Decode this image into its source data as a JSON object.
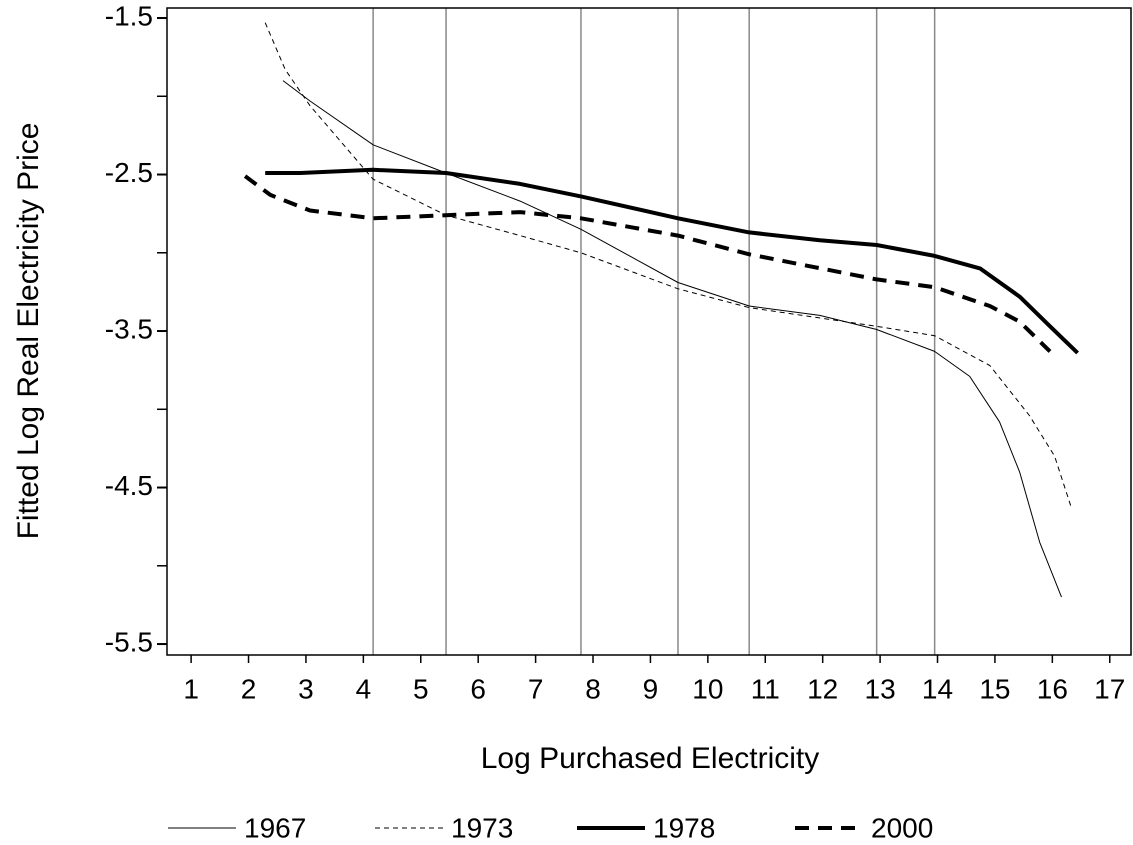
{
  "chart_data": {
    "type": "line",
    "xlabel": "Log Purchased Electricity",
    "ylabel": "Fitted Log Real Electricity Price",
    "xlim": [
      0.58,
      17.37
    ],
    "ylim": [
      -5.57,
      -1.436
    ],
    "xticks": [
      1,
      2,
      3,
      4,
      5,
      6,
      7,
      8,
      9,
      10,
      11,
      12,
      13,
      14,
      15,
      16,
      17
    ],
    "yticks": [
      -1.5,
      -2.5,
      -3.5,
      -4.5,
      -5.5
    ],
    "yminor_ticks": [
      -2,
      -3,
      -4,
      -5
    ],
    "vlines": [
      4.17,
      5.44,
      7.79,
      9.48,
      10.72,
      12.94,
      13.95
    ],
    "series": [
      {
        "name": "1967",
        "color": "#000000",
        "width": 1,
        "dash": "none",
        "x": [
          2.6,
          3.07,
          4.17,
          5.44,
          6.73,
          7.79,
          9.48,
          10.72,
          11.95,
          12.94,
          13.95,
          14.56,
          15.08,
          15.43,
          15.78,
          16.16
        ],
        "values": [
          -1.9,
          -2.03,
          -2.31,
          -2.49,
          -2.67,
          -2.85,
          -3.19,
          -3.34,
          -3.4,
          -3.49,
          -3.63,
          -3.79,
          -4.08,
          -4.4,
          -4.85,
          -5.2
        ]
      },
      {
        "name": "1973",
        "color": "#000000",
        "width": 1,
        "dash": "5,4",
        "x": [
          2.29,
          2.64,
          3.07,
          4.17,
          5.44,
          6.73,
          7.79,
          9.48,
          10.72,
          12.94,
          13.95,
          14.91,
          15.6,
          16.04,
          16.34
        ],
        "values": [
          -1.53,
          -1.83,
          -2.06,
          -2.53,
          -2.76,
          -2.89,
          -3.0,
          -3.23,
          -3.35,
          -3.47,
          -3.53,
          -3.72,
          -4.04,
          -4.3,
          -4.64
        ]
      },
      {
        "name": "1978",
        "color": "#000000",
        "width": 4,
        "dash": "none",
        "x": [
          2.29,
          2.9,
          4.17,
          5.44,
          6.73,
          7.79,
          9.48,
          10.72,
          11.95,
          12.94,
          13.95,
          14.74,
          15.43,
          15.96,
          16.44
        ],
        "values": [
          -2.49,
          -2.49,
          -2.47,
          -2.49,
          -2.56,
          -2.64,
          -2.78,
          -2.87,
          -2.92,
          -2.95,
          -3.02,
          -3.1,
          -3.28,
          -3.47,
          -3.64
        ]
      },
      {
        "name": "2000",
        "color": "#000000",
        "width": 4,
        "dash": "14,9",
        "x": [
          1.94,
          2.38,
          3.07,
          4.17,
          5.44,
          6.73,
          7.79,
          9.48,
          10.72,
          12.94,
          13.95,
          14.91,
          15.43,
          15.96
        ],
        "values": [
          -2.51,
          -2.63,
          -2.73,
          -2.78,
          -2.76,
          -2.74,
          -2.78,
          -2.89,
          -3.01,
          -3.17,
          -3.22,
          -3.34,
          -3.44,
          -3.63
        ]
      }
    ],
    "legend": "bottom"
  }
}
